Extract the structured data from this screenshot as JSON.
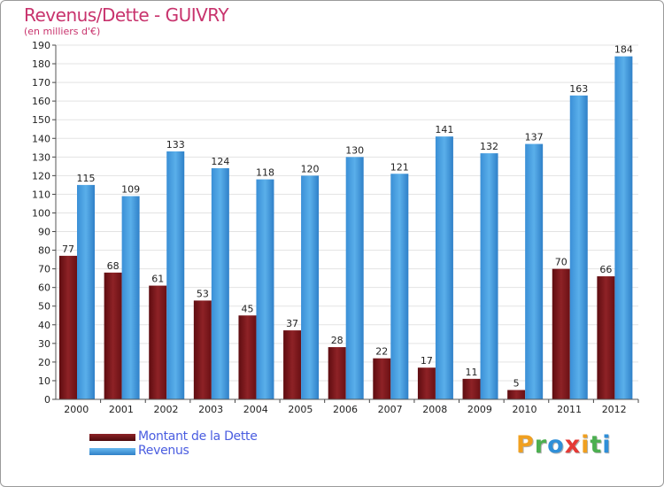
{
  "header": {
    "title": "Revenus/Dette - GUIVRY",
    "subtitle": "(en milliers d'€)"
  },
  "chart_data": {
    "type": "bar",
    "categories": [
      "2000",
      "2001",
      "2002",
      "2003",
      "2004",
      "2005",
      "2006",
      "2007",
      "2008",
      "2009",
      "2010",
      "2011",
      "2012"
    ],
    "series": [
      {
        "name": "Montant de la Dette",
        "color": "#7a1518",
        "values": [
          77,
          68,
          61,
          53,
          45,
          37,
          28,
          22,
          17,
          11,
          5,
          70,
          66
        ]
      },
      {
        "name": "Revenus",
        "color": "#3f98dd",
        "values": [
          115,
          109,
          133,
          124,
          118,
          120,
          130,
          121,
          141,
          132,
          137,
          163,
          184
        ]
      }
    ],
    "ylim": [
      0,
      190
    ],
    "yticks": [
      0,
      10,
      20,
      30,
      40,
      50,
      60,
      70,
      80,
      90,
      100,
      110,
      120,
      130,
      140,
      150,
      160,
      170,
      180,
      190
    ],
    "grid": true,
    "legend": "bottom-left"
  },
  "logo": {
    "letters": [
      "P",
      "r",
      "o",
      "x",
      "i",
      "t",
      "i"
    ],
    "colors": [
      "#f0a020",
      "#4caf50",
      "#2f8fd8",
      "#e53935",
      "#f0a020",
      "#4caf50",
      "#2f8fd8"
    ]
  }
}
